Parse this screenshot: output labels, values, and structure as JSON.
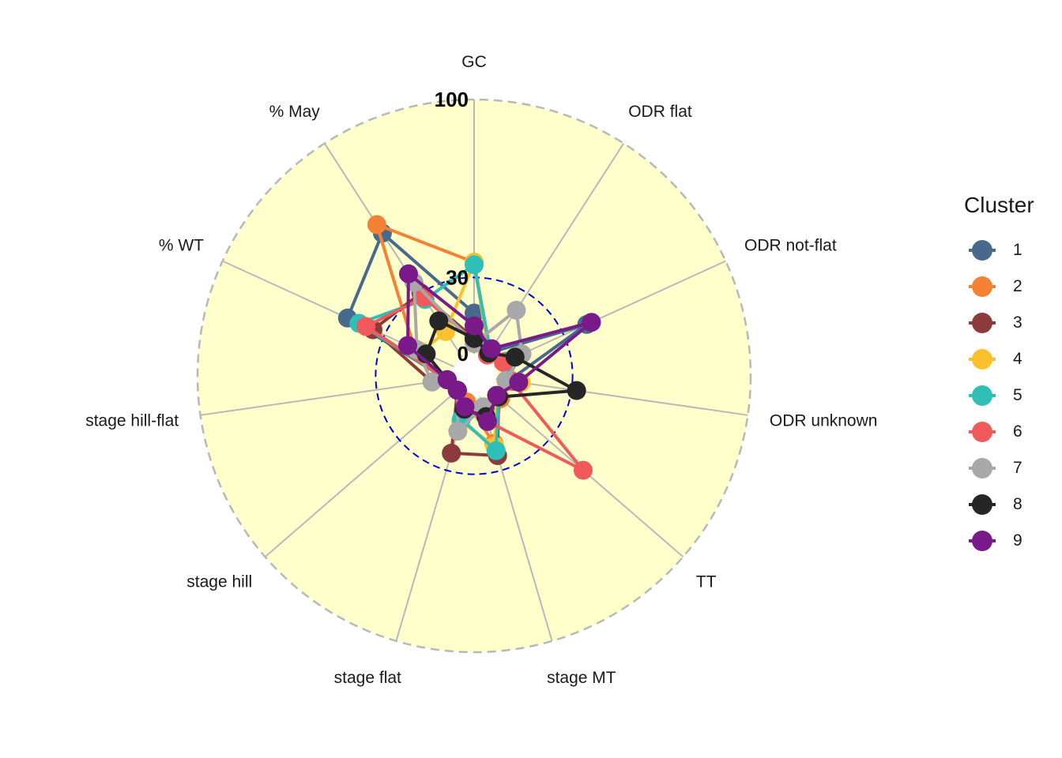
{
  "legend": {
    "title": "Cluster"
  },
  "chart_data": {
    "type": "radar",
    "axes": [
      "GC",
      "ODR flat",
      "ODR not-flat",
      "ODR unknown",
      "TT",
      "stage MT",
      "stage flat",
      "stage hill",
      "stage hill-flat",
      "% WT",
      "% May"
    ],
    "ring_labels": [
      "100",
      "30",
      "0"
    ],
    "rlim": [
      0,
      100
    ],
    "reference_ring": 30,
    "legend_position": "right",
    "background_color": "#ffffcc",
    "grid_color": "#b8b8b8",
    "reference_ring_color": "#0000dd",
    "series": [
      {
        "name": "1",
        "color": "#476a8c",
        "values": [
          16,
          2,
          40,
          5,
          4,
          10,
          5,
          0,
          2,
          46,
          58
        ]
      },
      {
        "name": "2",
        "color": "#f58234",
        "values": [
          36,
          3,
          5,
          6,
          5,
          19,
          2,
          0,
          2,
          17,
          62
        ]
      },
      {
        "name": "3",
        "color": "#8b3b3b",
        "values": [
          6,
          2,
          5,
          4,
          4,
          24,
          23,
          0,
          8,
          35,
          30
        ]
      },
      {
        "name": "4",
        "color": "#fbc02d",
        "values": [
          36,
          2,
          5,
          10,
          3,
          20,
          10,
          0,
          2,
          14,
          12
        ]
      },
      {
        "name": "5",
        "color": "#2fbfb8",
        "values": [
          35,
          3,
          5,
          7,
          4,
          22,
          9,
          0,
          2,
          41,
          27
        ]
      },
      {
        "name": "6",
        "color": "#f05a5a",
        "values": [
          5,
          1,
          4,
          6,
          48,
          10,
          4,
          0,
          2,
          38,
          28
        ]
      },
      {
        "name": "7",
        "color": "#a8a8a8",
        "values": [
          4,
          22,
          12,
          4,
          4,
          4,
          14,
          0,
          8,
          16,
          35
        ]
      },
      {
        "name": "8",
        "color": "#262626",
        "values": [
          6,
          2,
          9,
          32,
          4,
          8,
          5,
          0,
          2,
          12,
          17
        ]
      },
      {
        "name": "9",
        "color": "#7a1a8a",
        "values": [
          11,
          4,
          42,
          9,
          3,
          10,
          4,
          0,
          2,
          20,
          39
        ]
      }
    ]
  }
}
